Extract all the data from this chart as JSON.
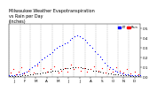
{
  "title": "Milwaukee Weather Evapotranspiration\nvs Rain per Day\n(Inches)",
  "title_fontsize": 3.5,
  "legend_et": "ET",
  "legend_rain": "Rain",
  "et_color": "#0000ff",
  "rain_color": "#ff0000",
  "background_color": "#ffffff",
  "ylim": [
    0,
    0.55
  ],
  "xlim": [
    0,
    365
  ],
  "ylabel_fontsize": 3.0,
  "xlabel_fontsize": 3.0,
  "yticks": [
    0.0,
    0.1,
    0.2,
    0.3,
    0.4,
    0.5
  ],
  "month_starts": [
    0,
    31,
    59,
    90,
    120,
    151,
    181,
    212,
    243,
    273,
    304,
    334
  ],
  "month_labels": [
    "J",
    "F",
    "M",
    "A",
    "M",
    "J",
    "J",
    "A",
    "S",
    "O",
    "N",
    "D"
  ],
  "et_values_doy": [
    1,
    8,
    15,
    22,
    29,
    36,
    43,
    50,
    57,
    64,
    71,
    78,
    85,
    92,
    99,
    106,
    113,
    120,
    127,
    134,
    141,
    148,
    155,
    162,
    169,
    176,
    183,
    190,
    197,
    204,
    211,
    218,
    225,
    232,
    239,
    246,
    253,
    260,
    267,
    274,
    281,
    288,
    295,
    302,
    309,
    316,
    323,
    330,
    337,
    344,
    351,
    358,
    365
  ],
  "et_values": [
    0.02,
    0.02,
    0.02,
    0.03,
    0.03,
    0.04,
    0.05,
    0.06,
    0.08,
    0.1,
    0.12,
    0.14,
    0.16,
    0.18,
    0.2,
    0.22,
    0.24,
    0.26,
    0.28,
    0.3,
    0.32,
    0.33,
    0.35,
    0.36,
    0.38,
    0.4,
    0.42,
    0.43,
    0.42,
    0.4,
    0.38,
    0.36,
    0.33,
    0.3,
    0.27,
    0.24,
    0.21,
    0.18,
    0.15,
    0.12,
    0.1,
    0.08,
    0.07,
    0.06,
    0.05,
    0.04,
    0.03,
    0.03,
    0.02,
    0.02,
    0.02,
    0.02,
    0.02
  ],
  "rain_values_doy": [
    5,
    12,
    20,
    28,
    35,
    42,
    55,
    70,
    80,
    95,
    105,
    115,
    125,
    138,
    145,
    155,
    162,
    172,
    180,
    192,
    200,
    210,
    218,
    228,
    238,
    248,
    258,
    268,
    278,
    288,
    298,
    308,
    318,
    328,
    338,
    350,
    360
  ],
  "rain_values": [
    0.05,
    0.08,
    0.03,
    0.06,
    0.1,
    0.04,
    0.07,
    0.05,
    0.12,
    0.09,
    0.06,
    0.08,
    0.11,
    0.05,
    0.07,
    0.09,
    0.06,
    0.13,
    0.08,
    0.1,
    0.07,
    0.09,
    0.06,
    0.08,
    0.11,
    0.07,
    0.09,
    0.05,
    0.08,
    0.06,
    0.1,
    0.07,
    0.05,
    0.08,
    0.04,
    0.06,
    0.03
  ],
  "black_doy": [
    3,
    10,
    17,
    24,
    31,
    38,
    45,
    52,
    59,
    66,
    73,
    80,
    87,
    94,
    101,
    108,
    115,
    122,
    129,
    136,
    143,
    150,
    157,
    164,
    171,
    178,
    185,
    192,
    199,
    206,
    213,
    220,
    227,
    234,
    241,
    248,
    255,
    262,
    269,
    276,
    283,
    290,
    297,
    304,
    311,
    318,
    325,
    332,
    339,
    346,
    353,
    360
  ],
  "black_values": [
    0.01,
    0.01,
    0.01,
    0.01,
    0.01,
    0.02,
    0.02,
    0.02,
    0.03,
    0.03,
    0.04,
    0.04,
    0.04,
    0.05,
    0.05,
    0.06,
    0.06,
    0.07,
    0.07,
    0.07,
    0.08,
    0.08,
    0.09,
    0.09,
    0.09,
    0.1,
    0.1,
    0.1,
    0.1,
    0.09,
    0.09,
    0.08,
    0.08,
    0.07,
    0.07,
    0.06,
    0.06,
    0.05,
    0.05,
    0.04,
    0.04,
    0.03,
    0.03,
    0.03,
    0.02,
    0.02,
    0.02,
    0.02,
    0.01,
    0.01,
    0.01,
    0.01
  ]
}
